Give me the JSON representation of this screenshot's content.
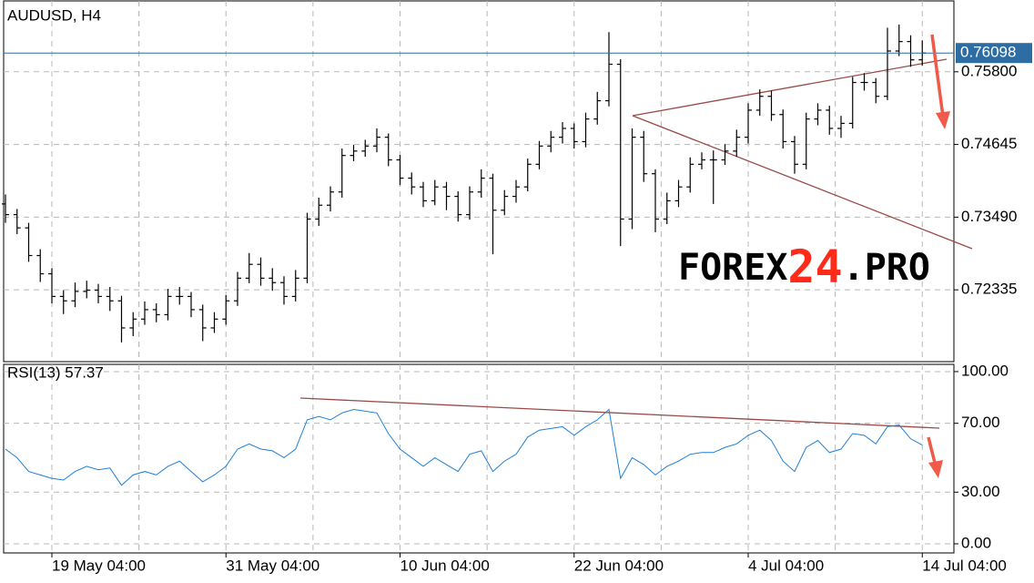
{
  "chart_data": [
    {
      "type": "ohlc",
      "title": "AUDUSD, H4",
      "color": "#000000",
      "grid": true,
      "categories": [
        null,
        null,
        null,
        null,
        "19 May 04:00",
        null,
        null,
        null,
        null,
        null,
        null,
        null,
        null,
        null,
        null,
        null,
        null,
        null,
        null,
        "31 May 04:00",
        null,
        null,
        null,
        null,
        null,
        null,
        null,
        null,
        null,
        null,
        null,
        null,
        null,
        null,
        "10 Jun 04:00",
        null,
        null,
        null,
        null,
        null,
        null,
        null,
        null,
        null,
        null,
        null,
        null,
        null,
        null,
        "22 Jun 04:00",
        null,
        null,
        null,
        null,
        null,
        null,
        null,
        null,
        null,
        null,
        null,
        null,
        null,
        null,
        "4 Jul 04:00",
        null,
        null,
        null,
        null,
        null,
        null,
        null,
        null,
        null,
        null,
        null,
        null,
        null,
        null,
        "14 Jul 04:00"
      ],
      "open": [
        0.737,
        0.7353,
        0.7332,
        0.7288,
        0.7259,
        0.7223,
        0.7216,
        0.7231,
        0.7233,
        0.7223,
        0.7216,
        0.7173,
        0.7187,
        0.7202,
        0.7194,
        0.7223,
        0.7223,
        0.7202,
        0.7173,
        0.7187,
        0.7216,
        0.7252,
        0.7274,
        0.7252,
        0.7245,
        0.7223,
        0.7252,
        0.7346,
        0.7368,
        0.7389,
        0.7447,
        0.7454,
        0.7462,
        0.7476,
        0.744,
        0.7411,
        0.7397,
        0.7375,
        0.7397,
        0.7382,
        0.7353,
        0.7389,
        0.7411,
        0.736,
        0.7382,
        0.7397,
        0.7433,
        0.7462,
        0.7476,
        0.749,
        0.7469,
        0.7505,
        0.7534,
        0.7592,
        0.7346,
        0.7476,
        0.7418,
        0.7346,
        0.7375,
        0.7397,
        0.7433,
        0.744,
        0.744,
        0.7454,
        0.7476,
        0.7519,
        0.7541,
        0.7512,
        0.7469,
        0.7433,
        0.7505,
        0.7519,
        0.749,
        0.7498,
        0.7563,
        0.7563,
        0.7541,
        0.7613,
        0.7628,
        0.7599
      ],
      "high": [
        0.7385,
        0.7362,
        0.734,
        0.7298,
        0.7268,
        0.7233,
        0.7245,
        0.7248,
        0.7243,
        0.7238,
        0.7224,
        0.7198,
        0.7215,
        0.7212,
        0.7235,
        0.7238,
        0.723,
        0.721,
        0.7198,
        0.7225,
        0.7262,
        0.7292,
        0.7285,
        0.7268,
        0.7255,
        0.7265,
        0.7356,
        0.738,
        0.7398,
        0.7458,
        0.7464,
        0.7472,
        0.749,
        0.7482,
        0.7448,
        0.742,
        0.7405,
        0.7408,
        0.7405,
        0.739,
        0.7398,
        0.7425,
        0.7418,
        0.7392,
        0.7408,
        0.7442,
        0.747,
        0.7486,
        0.75,
        0.7498,
        0.7515,
        0.7548,
        0.7643,
        0.76,
        0.749,
        0.7486,
        0.7425,
        0.7388,
        0.7408,
        0.7444,
        0.7452,
        0.7455,
        0.7465,
        0.7488,
        0.753,
        0.7552,
        0.755,
        0.752,
        0.7478,
        0.7515,
        0.753,
        0.7526,
        0.751,
        0.7572,
        0.7578,
        0.757,
        0.765,
        0.7655,
        0.7638,
        0.763
      ],
      "low": [
        0.734,
        0.7322,
        0.7278,
        0.7246,
        0.7212,
        0.7195,
        0.7206,
        0.722,
        0.7212,
        0.72,
        0.715,
        0.716,
        0.7178,
        0.7182,
        0.7185,
        0.721,
        0.719,
        0.7152,
        0.7165,
        0.7178,
        0.7208,
        0.7244,
        0.724,
        0.7232,
        0.721,
        0.7215,
        0.7244,
        0.7335,
        0.7358,
        0.738,
        0.7438,
        0.7445,
        0.7452,
        0.743,
        0.74,
        0.7385,
        0.7365,
        0.7368,
        0.736,
        0.7342,
        0.7345,
        0.738,
        0.729,
        0.7352,
        0.7372,
        0.739,
        0.7425,
        0.7452,
        0.7466,
        0.7458,
        0.746,
        0.7496,
        0.7525,
        0.7303,
        0.733,
        0.7405,
        0.7325,
        0.7338,
        0.7365,
        0.7388,
        0.7425,
        0.737,
        0.7432,
        0.7445,
        0.7466,
        0.751,
        0.7502,
        0.7458,
        0.7418,
        0.7425,
        0.7495,
        0.748,
        0.7475,
        0.749,
        0.755,
        0.753,
        0.7535,
        0.7605,
        0.7588,
        0.759
      ],
      "close": [
        0.7353,
        0.7332,
        0.7288,
        0.7259,
        0.7223,
        0.7216,
        0.7231,
        0.7233,
        0.7223,
        0.7216,
        0.7173,
        0.7187,
        0.7202,
        0.7194,
        0.7223,
        0.7223,
        0.7202,
        0.7173,
        0.7187,
        0.7216,
        0.7252,
        0.7274,
        0.7252,
        0.7245,
        0.7223,
        0.7252,
        0.7346,
        0.7368,
        0.7389,
        0.7447,
        0.7454,
        0.7462,
        0.7476,
        0.744,
        0.7411,
        0.7397,
        0.7375,
        0.7397,
        0.7382,
        0.7353,
        0.7389,
        0.7411,
        0.736,
        0.7382,
        0.7397,
        0.7433,
        0.7462,
        0.7476,
        0.749,
        0.7469,
        0.7505,
        0.7534,
        0.7592,
        0.7346,
        0.7476,
        0.7418,
        0.7346,
        0.7375,
        0.7397,
        0.7433,
        0.744,
        0.744,
        0.7454,
        0.7476,
        0.7519,
        0.7541,
        0.7512,
        0.7469,
        0.7433,
        0.7505,
        0.7519,
        0.749,
        0.7498,
        0.7563,
        0.7563,
        0.7541,
        0.7613,
        0.7628,
        0.7599,
        0.76098
      ],
      "last_price": 0.76098,
      "last_price_color": "#2e6ca4",
      "ylim": [
        0.71194,
        0.76926
      ],
      "yticks": [
        {
          "value": 0.758,
          "label": "0.75800"
        },
        0.74645,
        {
          "value": 0.7349,
          "label": "0.73490"
        },
        0.72335
      ]
    },
    {
      "type": "line",
      "title": "RSI(13) 57.37",
      "color": "#1f7fd8",
      "grid": true,
      "values": [
        55,
        50,
        42,
        40,
        38,
        37,
        42,
        45,
        43,
        44,
        34,
        40,
        42,
        40,
        45,
        48,
        42,
        36,
        40,
        45,
        55,
        58,
        55,
        54,
        50,
        55,
        72,
        74,
        72,
        76,
        78,
        77,
        76,
        64,
        55,
        50,
        45,
        50,
        46,
        42,
        52,
        54,
        42,
        48,
        52,
        62,
        66,
        67,
        68,
        63,
        68,
        72,
        78,
        38,
        50,
        46,
        40,
        45,
        48,
        52,
        53,
        53,
        56,
        58,
        63,
        66,
        60,
        48,
        42,
        56,
        60,
        53,
        55,
        64,
        63,
        58,
        68,
        69,
        61,
        57.37
      ],
      "ylim": [
        -5.3,
        104.2
      ],
      "yticks": [
        {
          "value": 100,
          "label": "100.00"
        },
        {
          "value": 70,
          "label": "70.00"
        },
        {
          "value": 30,
          "label": "30.00"
        },
        {
          "value": 0,
          "label": "0.00"
        }
      ]
    }
  ],
  "watermark": {
    "left": "FOREX",
    "middle": "24",
    "right": ".PRO"
  }
}
